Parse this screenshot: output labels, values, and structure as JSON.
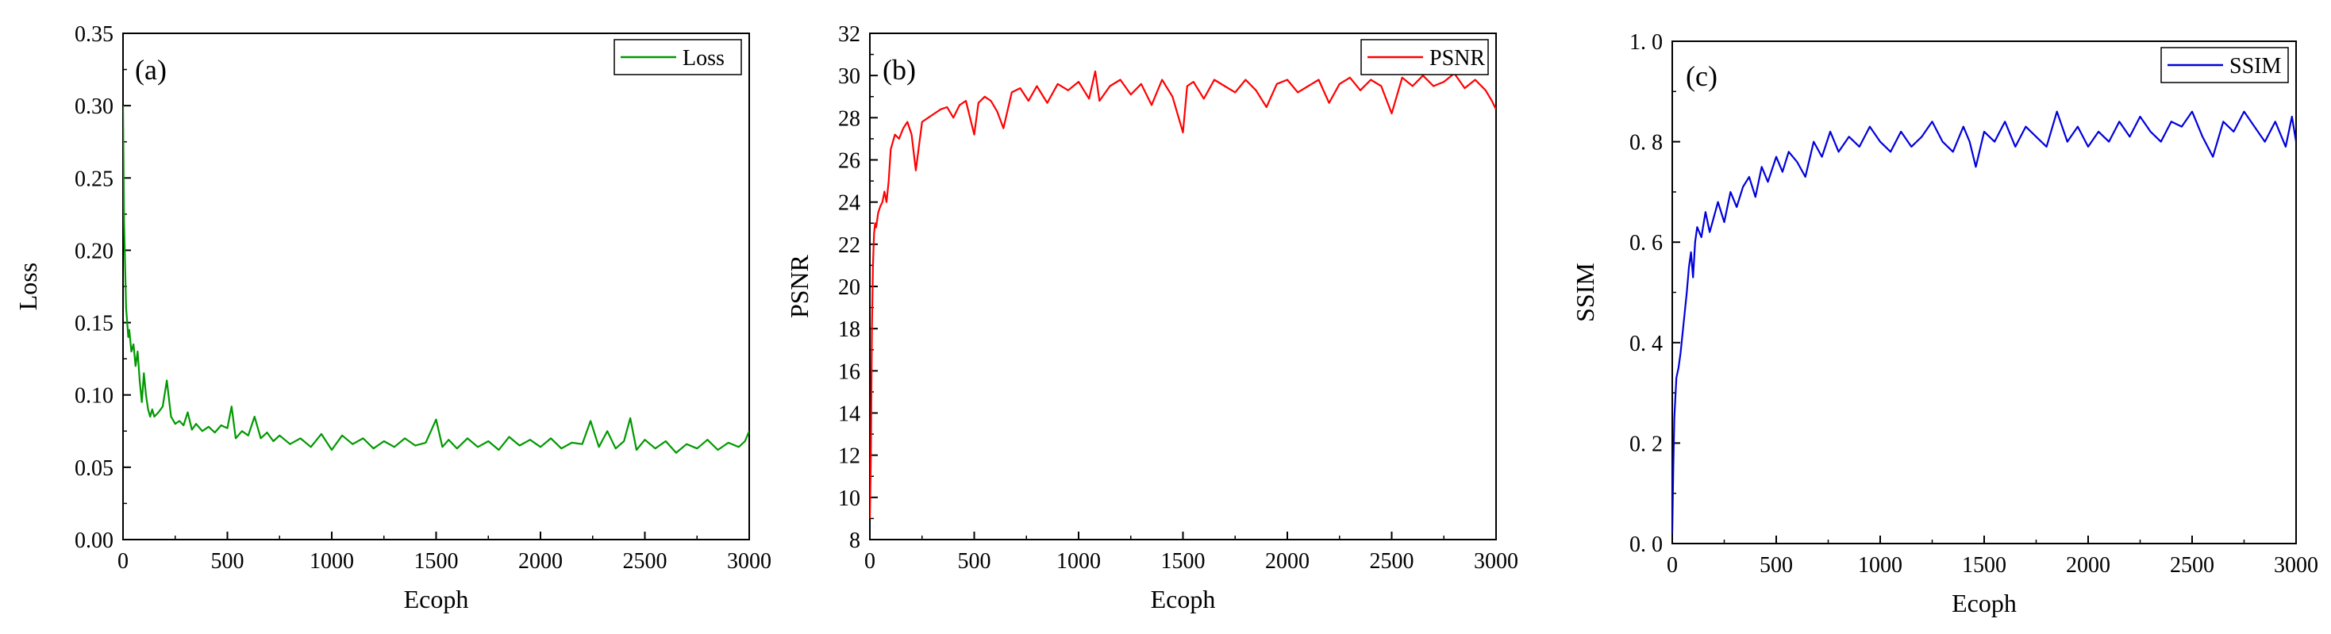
{
  "chart_data": [
    {
      "type": "line",
      "panel_label": "(a)",
      "title": "",
      "xlabel": "Ecoph",
      "ylabel": "Loss",
      "xlim": [
        0,
        3000
      ],
      "ylim": [
        0.0,
        0.35
      ],
      "xticks": [
        0,
        500,
        1000,
        1500,
        2000,
        2500,
        3000
      ],
      "xtick_labels": [
        "0",
        "500",
        "1000",
        "1500",
        "2000",
        "2500",
        "3000"
      ],
      "yticks": [
        0.0,
        0.05,
        0.1,
        0.15,
        0.2,
        0.25,
        0.3,
        0.35
      ],
      "ytick_labels": [
        "0.00",
        "0.05",
        "0.10",
        "0.15",
        "0.20",
        "0.25",
        "0.30",
        "0.35"
      ],
      "legend": "top-right",
      "series": [
        {
          "name": "Loss",
          "color": "#009900",
          "x": [
            0,
            5,
            10,
            15,
            20,
            25,
            30,
            40,
            50,
            60,
            70,
            80,
            90,
            100,
            110,
            120,
            130,
            140,
            150,
            170,
            190,
            210,
            230,
            250,
            270,
            290,
            310,
            330,
            350,
            380,
            410,
            440,
            470,
            500,
            520,
            540,
            570,
            600,
            630,
            660,
            690,
            720,
            750,
            800,
            850,
            900,
            950,
            1000,
            1050,
            1100,
            1150,
            1200,
            1250,
            1300,
            1350,
            1400,
            1450,
            1500,
            1530,
            1560,
            1600,
            1650,
            1700,
            1750,
            1800,
            1850,
            1900,
            1950,
            2000,
            2050,
            2100,
            2150,
            2200,
            2240,
            2280,
            2320,
            2360,
            2400,
            2430,
            2460,
            2500,
            2550,
            2600,
            2650,
            2700,
            2750,
            2800,
            2850,
            2900,
            2950,
            2980,
            3000
          ],
          "y": [
            0.3,
            0.22,
            0.19,
            0.16,
            0.15,
            0.14,
            0.145,
            0.13,
            0.135,
            0.12,
            0.13,
            0.11,
            0.095,
            0.115,
            0.1,
            0.09,
            0.085,
            0.09,
            0.085,
            0.088,
            0.092,
            0.11,
            0.085,
            0.08,
            0.082,
            0.079,
            0.088,
            0.076,
            0.08,
            0.075,
            0.078,
            0.074,
            0.079,
            0.077,
            0.092,
            0.07,
            0.075,
            0.072,
            0.085,
            0.07,
            0.074,
            0.068,
            0.072,
            0.066,
            0.07,
            0.064,
            0.073,
            0.062,
            0.072,
            0.066,
            0.07,
            0.063,
            0.068,
            0.064,
            0.07,
            0.065,
            0.067,
            0.083,
            0.064,
            0.069,
            0.063,
            0.07,
            0.064,
            0.068,
            0.062,
            0.071,
            0.065,
            0.069,
            0.064,
            0.07,
            0.063,
            0.067,
            0.066,
            0.082,
            0.064,
            0.075,
            0.063,
            0.068,
            0.084,
            0.062,
            0.069,
            0.063,
            0.068,
            0.06,
            0.066,
            0.063,
            0.069,
            0.062,
            0.067,
            0.064,
            0.068,
            0.075
          ]
        }
      ]
    },
    {
      "type": "line",
      "panel_label": "(b)",
      "title": "",
      "xlabel": "Ecoph",
      "ylabel": "PSNR",
      "xlim": [
        0,
        3000
      ],
      "ylim": [
        8,
        32
      ],
      "xticks": [
        0,
        500,
        1000,
        1500,
        2000,
        2500,
        3000
      ],
      "xtick_labels": [
        "0",
        "500",
        "1000",
        "1500",
        "2000",
        "2500",
        "3000"
      ],
      "yticks": [
        8,
        10,
        12,
        14,
        16,
        18,
        20,
        22,
        24,
        26,
        28,
        30,
        32
      ],
      "ytick_labels": [
        "8",
        "10",
        "12",
        "14",
        "16",
        "18",
        "20",
        "22",
        "24",
        "26",
        "28",
        "30",
        "32"
      ],
      "legend": "top-right",
      "series": [
        {
          "name": "PSNR",
          "color": "#ff0000",
          "x": [
            0,
            5,
            10,
            15,
            20,
            25,
            30,
            40,
            50,
            60,
            70,
            80,
            90,
            100,
            120,
            140,
            160,
            180,
            200,
            220,
            250,
            280,
            310,
            340,
            370,
            400,
            430,
            460,
            500,
            520,
            550,
            580,
            610,
            640,
            680,
            720,
            760,
            800,
            850,
            900,
            950,
            1000,
            1050,
            1080,
            1100,
            1150,
            1200,
            1250,
            1300,
            1350,
            1400,
            1450,
            1500,
            1520,
            1550,
            1600,
            1650,
            1700,
            1750,
            1800,
            1850,
            1900,
            1950,
            2000,
            2050,
            2100,
            2150,
            2200,
            2250,
            2300,
            2350,
            2400,
            2450,
            2500,
            2550,
            2600,
            2650,
            2700,
            2750,
            2800,
            2850,
            2900,
            2950,
            2980,
            3000
          ],
          "y": [
            9,
            12,
            18,
            21,
            22.5,
            23,
            22.8,
            23.5,
            23.8,
            24,
            24.5,
            24,
            25,
            26.5,
            27.2,
            27,
            27.5,
            27.8,
            27.2,
            25.5,
            27.8,
            28,
            28.2,
            28.4,
            28.5,
            28,
            28.6,
            28.8,
            27.2,
            28.7,
            29,
            28.8,
            28.3,
            27.5,
            29.2,
            29.4,
            28.8,
            29.5,
            28.7,
            29.6,
            29.3,
            29.7,
            28.9,
            30.2,
            28.8,
            29.5,
            29.8,
            29.1,
            29.6,
            28.6,
            29.8,
            29,
            27.3,
            29.5,
            29.7,
            28.9,
            29.8,
            29.5,
            29.2,
            29.8,
            29.3,
            28.5,
            29.6,
            29.8,
            29.2,
            29.5,
            29.8,
            28.7,
            29.6,
            29.9,
            29.3,
            29.8,
            29.5,
            28.2,
            29.9,
            29.5,
            30,
            29.5,
            29.7,
            30.1,
            29.4,
            29.8,
            29.3,
            28.8,
            28.4
          ]
        }
      ]
    },
    {
      "type": "line",
      "panel_label": "(c)",
      "title": "",
      "xlabel": "Ecoph",
      "ylabel": "SSIM",
      "xlim": [
        0,
        3000
      ],
      "ylim": [
        0.0,
        1.0
      ],
      "xticks": [
        0,
        500,
        1000,
        1500,
        2000,
        2500,
        3000
      ],
      "xtick_labels": [
        "0",
        "500",
        "1000",
        "1500",
        "2000",
        "2500",
        "3000"
      ],
      "yticks": [
        0.0,
        0.2,
        0.4,
        0.6,
        0.8,
        1.0
      ],
      "ytick_labels": [
        "0. 0",
        "0. 2",
        "0. 4",
        "0. 6",
        "0. 8",
        "1. 0"
      ],
      "legend": "top-right",
      "series": [
        {
          "name": "SSIM",
          "color": "#0000dd",
          "x": [
            0,
            5,
            10,
            20,
            30,
            40,
            50,
            60,
            70,
            80,
            90,
            100,
            110,
            120,
            140,
            160,
            180,
            200,
            220,
            250,
            280,
            310,
            340,
            370,
            400,
            430,
            460,
            500,
            530,
            560,
            600,
            640,
            680,
            720,
            760,
            800,
            850,
            900,
            950,
            1000,
            1050,
            1100,
            1150,
            1200,
            1250,
            1300,
            1350,
            1400,
            1430,
            1460,
            1500,
            1550,
            1600,
            1650,
            1700,
            1750,
            1800,
            1850,
            1900,
            1950,
            2000,
            2050,
            2100,
            2150,
            2200,
            2250,
            2300,
            2350,
            2400,
            2450,
            2500,
            2550,
            2600,
            2650,
            2700,
            2750,
            2800,
            2850,
            2900,
            2950,
            2980,
            3000
          ],
          "y": [
            0.02,
            0.15,
            0.25,
            0.33,
            0.35,
            0.38,
            0.42,
            0.46,
            0.5,
            0.55,
            0.58,
            0.53,
            0.6,
            0.63,
            0.61,
            0.66,
            0.62,
            0.65,
            0.68,
            0.64,
            0.7,
            0.67,
            0.71,
            0.73,
            0.69,
            0.75,
            0.72,
            0.77,
            0.74,
            0.78,
            0.76,
            0.73,
            0.8,
            0.77,
            0.82,
            0.78,
            0.81,
            0.79,
            0.83,
            0.8,
            0.78,
            0.82,
            0.79,
            0.81,
            0.84,
            0.8,
            0.78,
            0.83,
            0.8,
            0.75,
            0.82,
            0.8,
            0.84,
            0.79,
            0.83,
            0.81,
            0.79,
            0.86,
            0.8,
            0.83,
            0.79,
            0.82,
            0.8,
            0.84,
            0.81,
            0.85,
            0.82,
            0.8,
            0.84,
            0.83,
            0.86,
            0.81,
            0.77,
            0.84,
            0.82,
            0.86,
            0.83,
            0.8,
            0.84,
            0.79,
            0.85,
            0.8
          ]
        }
      ]
    }
  ]
}
